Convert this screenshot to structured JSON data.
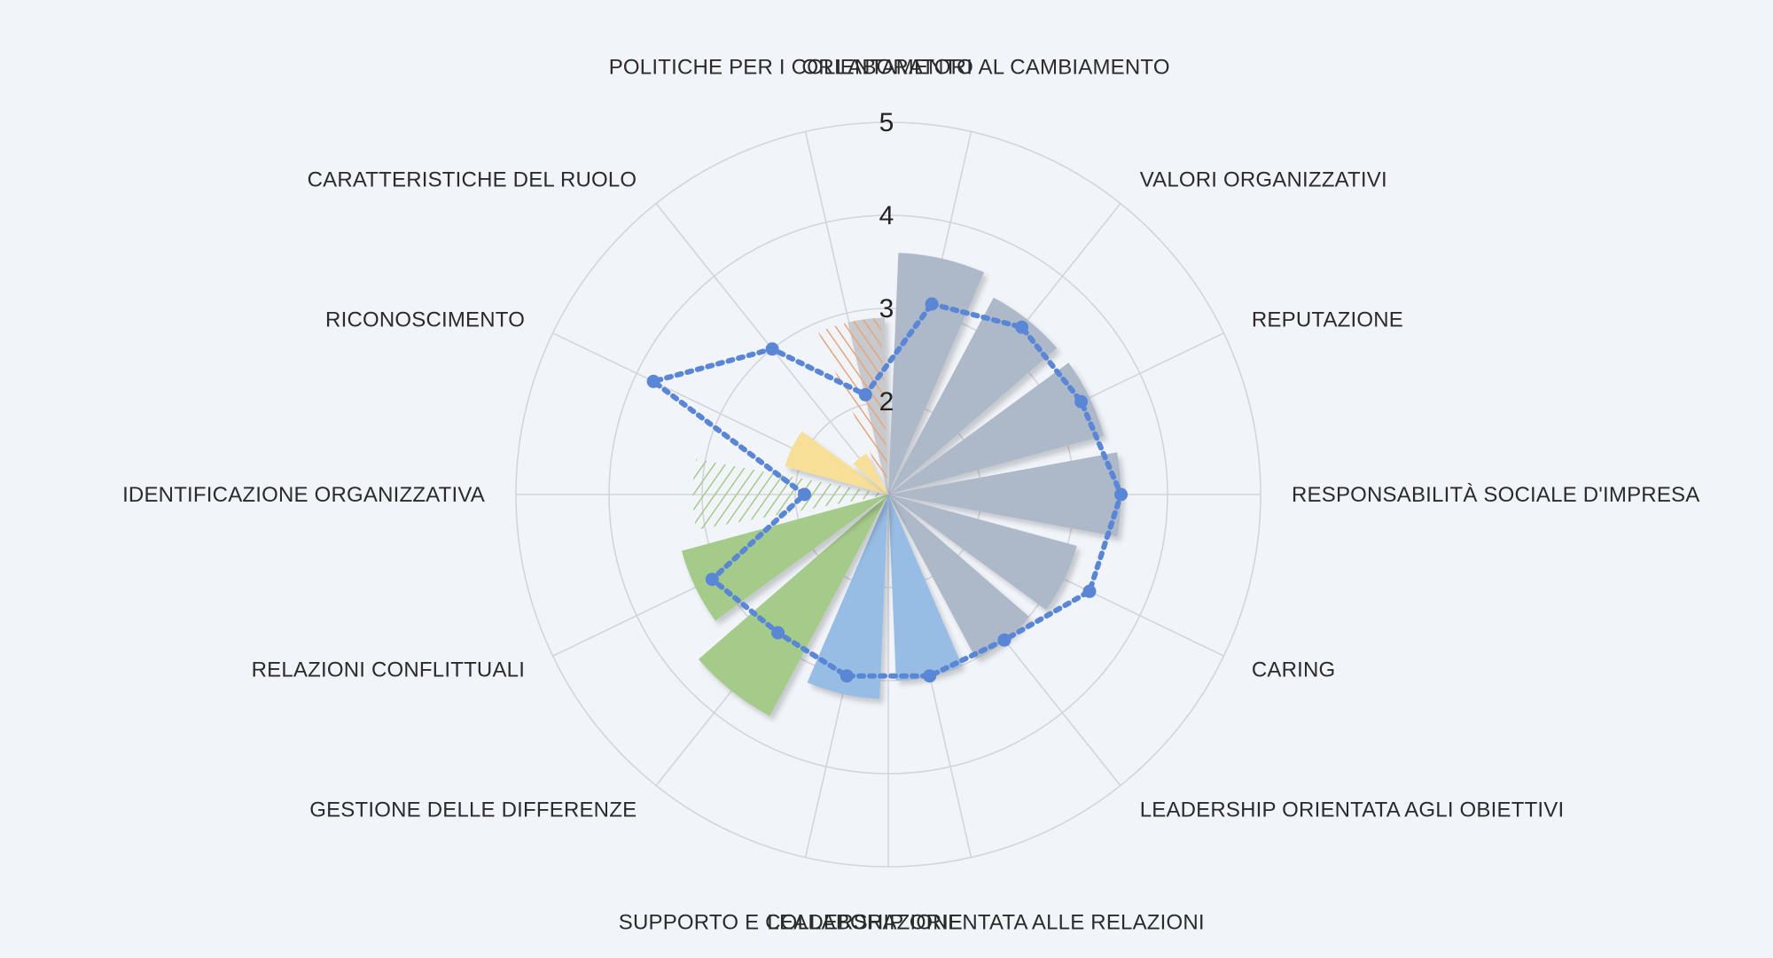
{
  "chart_data": {
    "type": "polar-bar",
    "title": "",
    "r_range": [
      1,
      5
    ],
    "ticks": [
      "2",
      "3",
      "4",
      "5"
    ],
    "categories": [
      "ORIENTAMENTO AL CAMBIAMENTO",
      "VALORI ORGANIZZATIVI",
      "REPUTAZIONE",
      "RESPONSABILITÀ SOCIALE D'IMPRESA",
      "CARING",
      "LEADERSHIP ORIENTATA AGLI OBIETTIVI",
      "LEADERSHIP ORIENTATA ALLE RELAZIONI",
      "SUPPORTO E COLLABORAZIONE",
      "GESTIONE DELLE DIFFERENZE",
      "RELAZIONI CONFLITTUALI",
      "IDENTIFICAZIONE ORGANIZZATIVA",
      "RICONOSCIMENTO",
      "CARATTERISTICHE DEL RUOLO",
      "POLITICHE PER I COLLABORATORI"
    ],
    "series": [
      {
        "name": "bars",
        "values": [
          3.6,
          3.4,
          3.4,
          3.5,
          3.1,
          3.0,
          3.0,
          3.2,
          3.7,
          3.3,
          3.1,
          2.15,
          1.5,
          2.9
        ]
      },
      {
        "name": "line",
        "values": [
          3.1,
          3.3,
          3.3,
          3.5,
          3.4,
          3.0,
          3.0,
          3.0,
          2.9,
          3.1,
          1.9,
          3.8,
          3.0,
          2.1
        ]
      }
    ],
    "bar_colors": [
      "#adb8c9",
      "#adb8c9",
      "#adb8c9",
      "#adb8c9",
      "#adb8c9",
      "#adb8c9",
      "#98bde4",
      "#98bde4",
      "#a5cb8b",
      "#a5cb8b",
      "#a5cb8b",
      "#f7df98",
      "#f7df98",
      "#e6a67e"
    ],
    "hatched": [
      false,
      false,
      false,
      false,
      false,
      false,
      false,
      false,
      false,
      false,
      true,
      false,
      false,
      true
    ],
    "neutral_bar": {
      "value": 2.9,
      "color": "#c7c9cc"
    },
    "line_color": "#5a86d6"
  }
}
